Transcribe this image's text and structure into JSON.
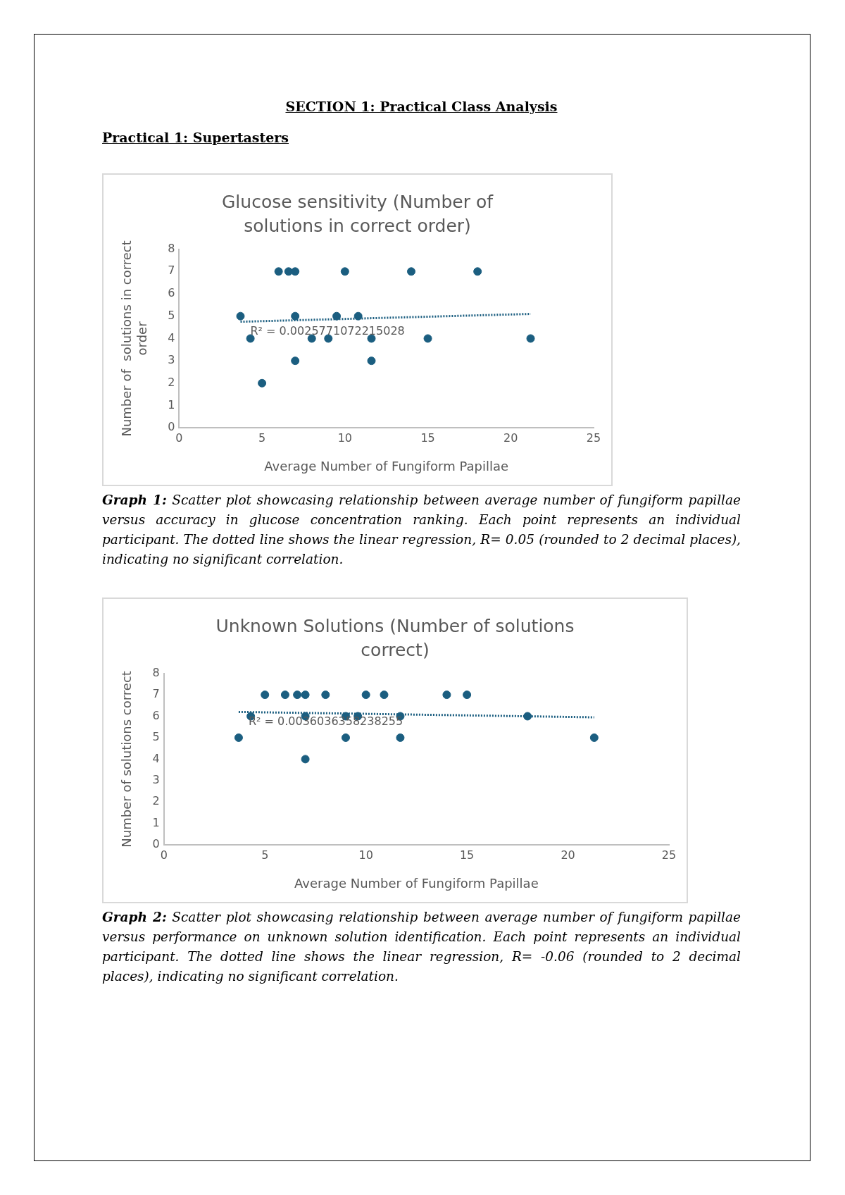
{
  "chart_data": [
    {
      "type": "scatter",
      "title": "Glucose sensitivity  (Number of solutions in correct order)",
      "xlabel": "Average Number of Fungiform Papillae",
      "ylabel": "Number of  solutions in correct order",
      "annotations": [
        "SECTION 1: Practical Class Analysis",
        "Practical 1: Supertasters",
        "R² = 0.0025771072215028",
        "Graph 1: Scatter plot showcasing relationship between average number of fungiform papillae versus accuracy in glucose concentration ranking. Each point represents an individual participant. The dotted line shows the linear regression, R= 0.05 (rounded to 2 decimal places), indicating no significant correlation."
      ],
      "series": [
        {
          "color": "#1b5e80",
          "x": [
            3.7,
            4.3,
            5,
            6,
            6.6,
            7,
            7,
            7,
            8,
            9,
            9.5,
            10,
            10.8,
            11.6,
            11.6,
            14,
            15,
            18,
            21.2
          ],
          "values": [
            5,
            4,
            2,
            7,
            7,
            7,
            5,
            3,
            4,
            4,
            5,
            7,
            5,
            4,
            3,
            7,
            4,
            7,
            4
          ]
        },
        {
          "type": "line",
          "color": "#1b5e80",
          "line_style": "dotted",
          "marker": "none",
          "x": [
            3.7,
            21.2
          ],
          "values": [
            4.75,
            5.1
          ]
        }
      ],
      "xlim": [
        0,
        25
      ],
      "xticks": [
        0,
        5,
        10,
        15,
        20,
        25
      ],
      "ylim": [
        0,
        8
      ],
      "yticks": [
        0,
        1,
        2,
        3,
        4,
        5,
        6,
        7,
        8
      ],
      "grid": false,
      "legend": false,
      "marker": "circle"
    },
    {
      "type": "scatter",
      "title": "Unknown Solutions (Number of solutions correct)",
      "xlabel": "Average Number of Fungiform Papillae",
      "ylabel": "Number of solutions correct",
      "annotations": [
        "R² = 0.0036036358238255",
        "Graph 2: Scatter plot showcasing relationship between average number of fungiform papillae versus performance on unknown solution identification. Each point represents an individual participant. The dotted line shows the linear regression, R= -0.06 (rounded to 2 decimal places), indicating no significant correlation."
      ],
      "series": [
        {
          "color": "#1b5e80",
          "x": [
            3.7,
            4.3,
            5,
            6,
            6.6,
            7,
            7,
            7,
            8,
            9,
            9,
            9.6,
            10,
            10.9,
            11.7,
            11.7,
            14,
            15,
            18,
            21.3
          ],
          "values": [
            5,
            6,
            7,
            7,
            7,
            7,
            6,
            4,
            7,
            6,
            5,
            6,
            7,
            7,
            6,
            5,
            7,
            7,
            6,
            5
          ]
        },
        {
          "type": "line",
          "color": "#1b5e80",
          "line_style": "dotted",
          "marker": "none",
          "x": [
            3.7,
            21.3
          ],
          "values": [
            6.2,
            5.95
          ]
        }
      ],
      "xlim": [
        0,
        25
      ],
      "xticks": [
        0,
        5,
        10,
        15,
        20,
        25
      ],
      "ylim": [
        0,
        8
      ],
      "yticks": [
        0,
        1,
        2,
        3,
        4,
        5,
        6,
        7,
        8
      ],
      "grid": false,
      "legend": false,
      "marker": "circle"
    }
  ]
}
